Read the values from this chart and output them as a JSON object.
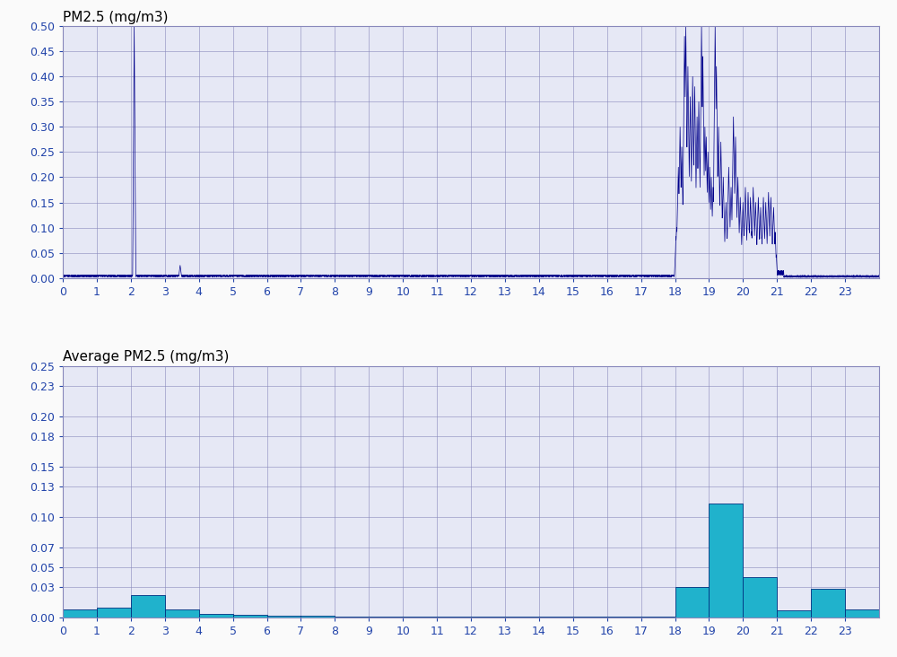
{
  "title1": "PM2.5 (mg/m3)",
  "title2": "Average PM2.5 (mg/m3)",
  "xlim": [
    0,
    24
  ],
  "ylim1": [
    0,
    0.5
  ],
  "ylim2": [
    0,
    0.25
  ],
  "yticks1": [
    0.0,
    0.05,
    0.1,
    0.15,
    0.2,
    0.25,
    0.3,
    0.35,
    0.4,
    0.45,
    0.5
  ],
  "yticks2": [
    0.0,
    0.03,
    0.05,
    0.07,
    0.1,
    0.13,
    0.15,
    0.18,
    0.2,
    0.23,
    0.25
  ],
  "xticks": [
    0,
    1,
    2,
    3,
    4,
    5,
    6,
    7,
    8,
    9,
    10,
    11,
    12,
    13,
    14,
    15,
    16,
    17,
    18,
    19,
    20,
    21,
    22,
    23
  ],
  "line_color": "#00008B",
  "bar_color": "#20B2CC",
  "bar_edge_color": "#003080",
  "background_color": "#E6E8F5",
  "figure_background": "#FAFAFA",
  "grid_color": "#8888BB",
  "title_color": "#000000",
  "tick_color": "#2244AA",
  "bar_avg": [
    0.008,
    0.01,
    0.022,
    0.008,
    0.004,
    0.003,
    0.002,
    0.002,
    0.001,
    0.001,
    0.001,
    0.001,
    0.001,
    0.001,
    0.001,
    0.001,
    0.001,
    0.001,
    0.03,
    0.113,
    0.04,
    0.007,
    0.029,
    0.008
  ],
  "spike_peaks": [
    [
      18.05,
      0.1
    ],
    [
      18.1,
      0.22
    ],
    [
      18.15,
      0.3
    ],
    [
      18.2,
      0.26
    ],
    [
      18.28,
      0.48
    ],
    [
      18.32,
      0.5
    ],
    [
      18.38,
      0.42
    ],
    [
      18.45,
      0.36
    ],
    [
      18.52,
      0.4
    ],
    [
      18.58,
      0.38
    ],
    [
      18.65,
      0.32
    ],
    [
      18.7,
      0.35
    ],
    [
      18.78,
      0.5
    ],
    [
      18.82,
      0.44
    ],
    [
      18.88,
      0.3
    ],
    [
      18.92,
      0.28
    ],
    [
      18.97,
      0.25
    ],
    [
      19.02,
      0.22
    ],
    [
      19.07,
      0.2
    ],
    [
      19.12,
      0.18
    ],
    [
      19.18,
      0.5
    ],
    [
      19.22,
      0.42
    ],
    [
      19.28,
      0.3
    ],
    [
      19.35,
      0.27
    ],
    [
      19.42,
      0.2
    ],
    [
      19.5,
      0.15
    ],
    [
      19.58,
      0.22
    ],
    [
      19.65,
      0.18
    ],
    [
      19.72,
      0.32
    ],
    [
      19.78,
      0.28
    ],
    [
      19.85,
      0.2
    ],
    [
      19.92,
      0.16
    ],
    [
      20.0,
      0.15
    ],
    [
      20.07,
      0.18
    ],
    [
      20.15,
      0.17
    ],
    [
      20.22,
      0.16
    ],
    [
      20.3,
      0.18
    ],
    [
      20.37,
      0.15
    ],
    [
      20.45,
      0.16
    ],
    [
      20.52,
      0.14
    ],
    [
      20.6,
      0.16
    ],
    [
      20.67,
      0.15
    ],
    [
      20.75,
      0.17
    ],
    [
      20.82,
      0.16
    ],
    [
      20.9,
      0.14
    ]
  ]
}
